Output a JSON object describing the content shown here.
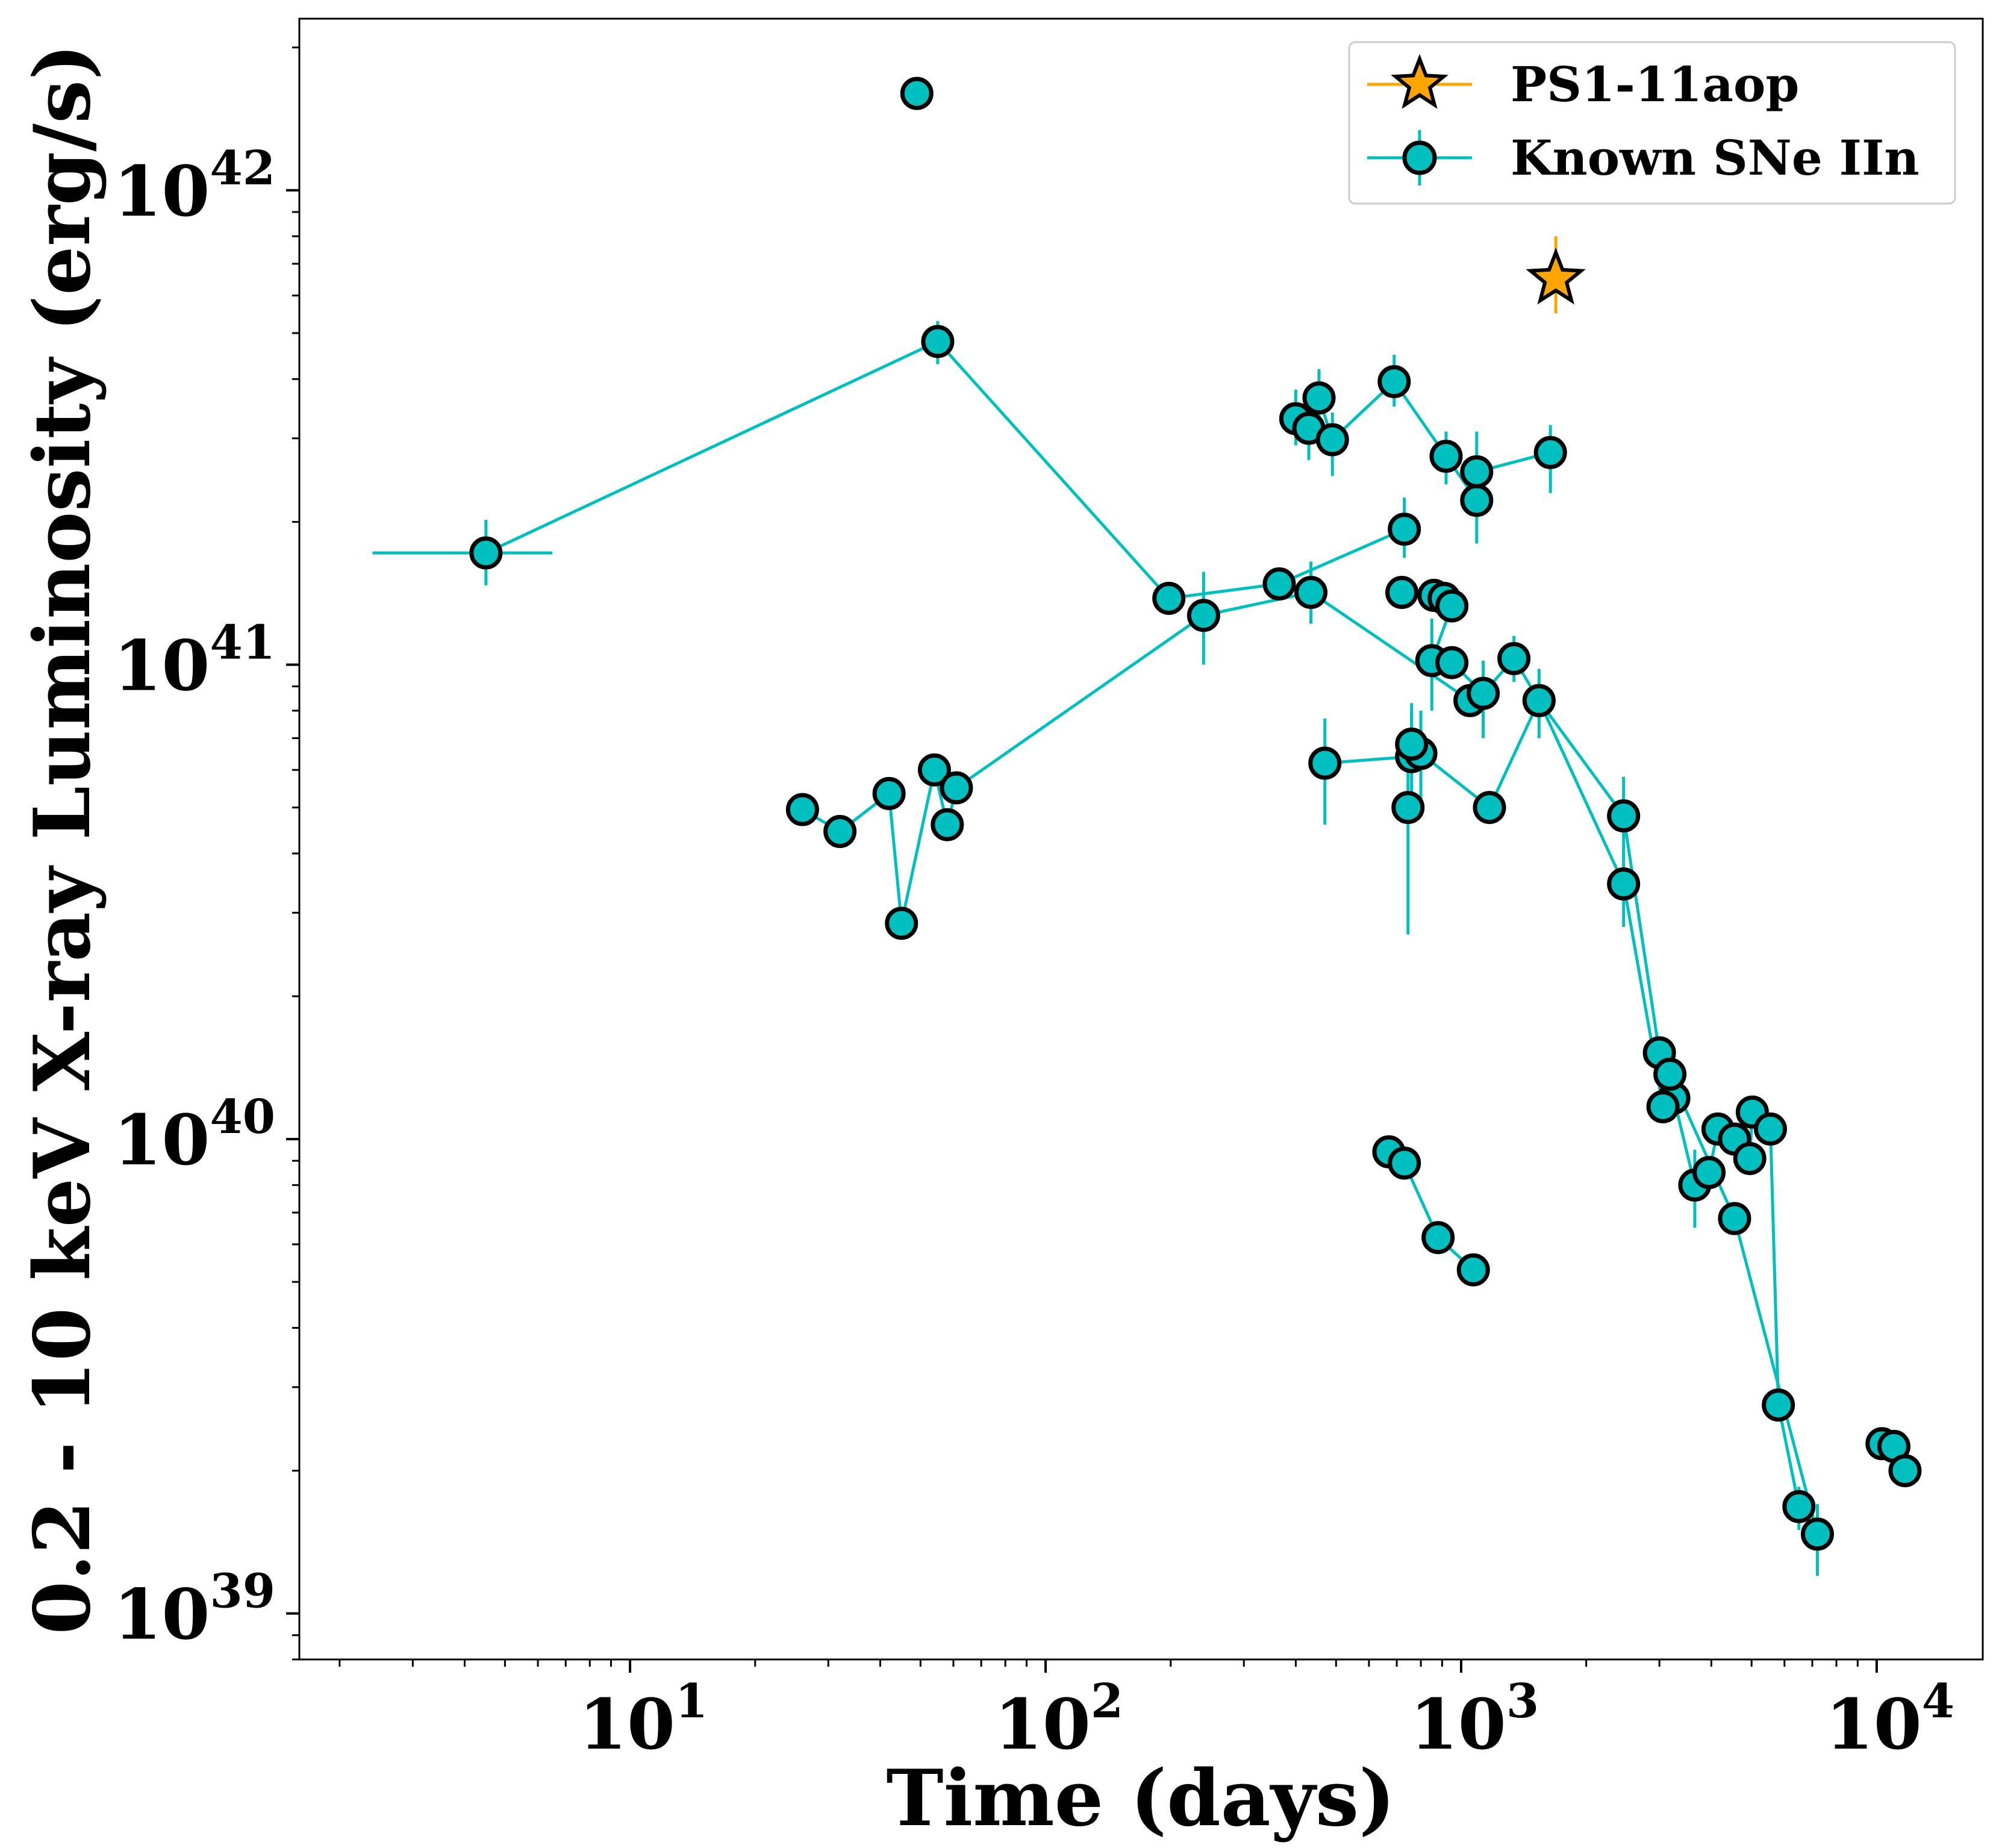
{
  "chart_data": {
    "type": "scatter",
    "xlabel": "Time (days)",
    "ylabel": "0.2 - 10 keV X-ray Luminosity (erg/s)",
    "xscale": "log",
    "yscale": "log",
    "xlim": [
      1.6,
      18000
    ],
    "ylim": [
      8e+38,
      2.3e+42
    ],
    "x_ticks": [
      {
        "value": 10,
        "base": "10",
        "exp": "1"
      },
      {
        "value": 100,
        "base": "10",
        "exp": "2"
      },
      {
        "value": 1000,
        "base": "10",
        "exp": "3"
      },
      {
        "value": 10000,
        "base": "10",
        "exp": "4"
      }
    ],
    "y_ticks": [
      {
        "value": 1e+39,
        "base": "10",
        "exp": "39"
      },
      {
        "value": 1e+40,
        "base": "10",
        "exp": "40"
      },
      {
        "value": 1e+41,
        "base": "10",
        "exp": "41"
      },
      {
        "value": 1e+42,
        "base": "10",
        "exp": "42"
      }
    ],
    "grid": false,
    "legend_position": "top-right",
    "series": [
      {
        "name": "PS1-11aop",
        "color": "#ffa500",
        "marker": "star",
        "connected": false,
        "points": [
          {
            "x": 1690,
            "y": 6.5e+41,
            "y_err": [
              5.5e+41,
              8e+41
            ]
          }
        ]
      },
      {
        "name": "Known SNe IIn",
        "color": "#00bfbf",
        "marker": "circle",
        "connected": true,
        "groups": [
          [
            {
              "x": 4.5,
              "y": 1.72e+41,
              "x_err": [
                2.4,
                6.5
              ],
              "y_err": [
                1.47e+41,
                2.02e+41
              ]
            },
            {
              "x": 55,
              "y": 4.8e+41,
              "y_err": [
                4.3e+41,
                5.3e+41
              ]
            },
            {
              "x": 198,
              "y": 1.38e+41
            },
            {
              "x": 365,
              "y": 1.48e+41
            },
            {
              "x": 730,
              "y": 1.93e+41,
              "y_err": [
                1.68e+41,
                2.25e+41
              ]
            }
          ],
          [
            {
              "x": 26,
              "y": 4.95e+40
            },
            {
              "x": 32,
              "y": 4.45e+40
            },
            {
              "x": 42,
              "y": 5.35e+40
            },
            {
              "x": 45,
              "y": 2.85e+40
            },
            {
              "x": 54,
              "y": 6e+40
            },
            {
              "x": 58,
              "y": 4.6e+40
            },
            {
              "x": 61,
              "y": 5.5e+40
            },
            {
              "x": 240,
              "y": 1.27e+41,
              "y_err": [
                1e+41,
                1.57e+41
              ]
            },
            {
              "x": 435,
              "y": 1.42e+41,
              "y_err": [
                1.22e+41,
                1.65e+41
              ]
            },
            {
              "x": 1050,
              "y": 8.4e+40
            }
          ],
          [
            {
              "x": 400,
              "y": 3.3e+41,
              "y_err": [
                2.9e+41,
                3.8e+41
              ]
            },
            {
              "x": 430,
              "y": 3.15e+41,
              "y_err": [
                2.7e+41,
                3.6e+41
              ]
            },
            {
              "x": 455,
              "y": 3.65e+41,
              "y_err": [
                3.2e+41,
                4.2e+41
              ]
            },
            {
              "x": 490,
              "y": 2.98e+41,
              "y_err": [
                2.5e+41,
                3.4e+41
              ]
            },
            {
              "x": 690,
              "y": 3.95e+41,
              "y_err": [
                3.5e+41,
                4.5e+41
              ]
            },
            {
              "x": 920,
              "y": 2.75e+41,
              "y_err": [
                2.4e+41,
                3.1e+41
              ]
            },
            {
              "x": 1090,
              "y": 2.22e+41,
              "y_err": [
                1.8e+41,
                2.65e+41
              ]
            },
            {
              "x": 1090,
              "y": 2.55e+41,
              "y_err": [
                2.1e+41,
                3.1e+41
              ]
            },
            {
              "x": 1640,
              "y": 2.8e+41,
              "y_err": [
                2.3e+41,
                3.2e+41
              ]
            }
          ],
          [
            {
              "x": 720,
              "y": 1.42e+41
            },
            {
              "x": 860,
              "y": 1.4e+41
            },
            {
              "x": 910,
              "y": 1.38e+41
            },
            {
              "x": 950,
              "y": 1.33e+41
            },
            {
              "x": 850,
              "y": 1.02e+41,
              "y_err": [
                8e+40,
                1.25e+41
              ]
            },
            {
              "x": 950,
              "y": 1.01e+41
            },
            {
              "x": 1130,
              "y": 8.7e+40,
              "y_err": [
                7e+40,
                1.02e+41
              ]
            },
            {
              "x": 1340,
              "y": 1.03e+41,
              "y_err": [
                9.2e+40,
                1.15e+41
              ]
            },
            {
              "x": 1540,
              "y": 8.4e+40,
              "y_err": [
                7e+40,
                9.8e+40
              ]
            },
            {
              "x": 2460,
              "y": 4.8e+40,
              "y_err": [
                3.9e+40,
                5.8e+40
              ]
            },
            {
              "x": 3000,
              "y": 1.52e+40
            },
            {
              "x": 3250,
              "y": 1.22e+40
            },
            {
              "x": 3650,
              "y": 8e+39,
              "y_err": [
                6.5e+39,
                9.5e+39
              ]
            },
            {
              "x": 3950,
              "y": 8.5e+39
            },
            {
              "x": 4150,
              "y": 1.05e+40
            },
            {
              "x": 4550,
              "y": 1e+40
            },
            {
              "x": 4950,
              "y": 9.1e+39
            },
            {
              "x": 5020,
              "y": 1.14e+40
            },
            {
              "x": 5550,
              "y": 1.05e+40
            },
            {
              "x": 5800,
              "y": 2.75e+39
            },
            {
              "x": 6500,
              "y": 1.68e+39,
              "y_err": [
                1.5e+39,
                1.85e+39
              ]
            }
          ],
          [
            {
              "x": 470,
              "y": 6.2e+40,
              "y_err": [
                4.6e+40,
                7.7e+40
              ]
            },
            {
              "x": 760,
              "y": 6.4e+40,
              "y_err": [
                5e+40,
                8e+40
              ]
            },
            {
              "x": 800,
              "y": 6.5e+40,
              "y_err": [
                5e+40,
                8e+40
              ]
            },
            {
              "x": 1170,
              "y": 5e+40
            },
            {
              "x": 1540,
              "y": 8.4e+40
            },
            {
              "x": 2460,
              "y": 3.45e+40,
              "y_err": [
                2.8e+40,
                4.1e+40
              ]
            },
            {
              "x": 3060,
              "y": 1.17e+40
            },
            {
              "x": 3180,
              "y": 1.37e+40
            },
            {
              "x": 4550,
              "y": 6.8e+39
            },
            {
              "x": 7200,
              "y": 1.47e+39,
              "y_err": [
                1.2e+39,
                1.7e+39
              ]
            }
          ],
          [
            {
              "x": 670,
              "y": 9.4e+39
            },
            {
              "x": 730,
              "y": 8.9e+39
            },
            {
              "x": 880,
              "y": 6.2e+39
            },
            {
              "x": 1070,
              "y": 5.3e+39
            }
          ],
          [
            {
              "x": 10300,
              "y": 2.28e+39
            },
            {
              "x": 11000,
              "y": 2.25e+39
            },
            {
              "x": 11700,
              "y": 2e+39
            }
          ]
        ],
        "extra_points": [
          {
            "x": 49,
            "y": 1.6e+42
          },
          {
            "x": 760,
            "y": 6.8e+40,
            "y_err": [
              5.2e+40,
              8.3e+40
            ]
          },
          {
            "x": 745,
            "y": 5e+40,
            "y_err": [
              2.7e+40,
              6.5e+40
            ]
          }
        ]
      }
    ]
  }
}
